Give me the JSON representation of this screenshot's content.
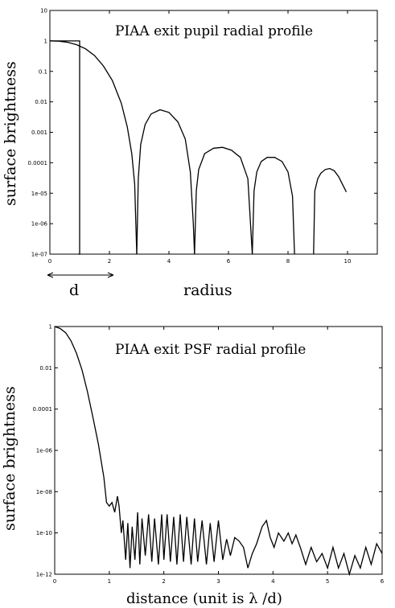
{
  "chart_data": [
    {
      "type": "line",
      "title": "PIAA exit pupil radial profile",
      "xlabel": "radius",
      "ylabel": "surface brightness",
      "annotation": "d",
      "xlim": [
        0,
        11
      ],
      "ylim_log10": [
        -7,
        1
      ],
      "log_y": true,
      "x_ticks": [
        "0",
        "2",
        "4",
        "6",
        "8",
        "10"
      ],
      "y_ticks": [
        "10",
        "1",
        "0.1",
        "0.01",
        "0.001",
        "0.0001",
        "1e-05",
        "1e-06",
        "1e-07"
      ],
      "series": [
        {
          "x": [
            0,
            0.3,
            0.6,
            0.9,
            1.2,
            1.5,
            1.8,
            2.1,
            2.4,
            2.6,
            2.75,
            2.85,
            2.92
          ],
          "y": [
            1,
            0.98,
            0.9,
            0.75,
            0.55,
            0.33,
            0.15,
            0.05,
            0.009,
            0.0015,
            0.0002,
            2e-05,
            1e-07
          ]
        },
        {
          "x": [
            2.92,
            2.97,
            3.05,
            3.2,
            3.4,
            3.7,
            4.0,
            4.3,
            4.55,
            4.72,
            4.82,
            4.86
          ],
          "y": [
            1e-07,
            3e-05,
            0.0004,
            0.0018,
            0.004,
            0.0055,
            0.0045,
            0.0022,
            0.0006,
            5e-05,
            1e-06,
            1e-07
          ]
        },
        {
          "x": [
            4.86,
            4.92,
            5.0,
            5.2,
            5.5,
            5.8,
            6.1,
            6.4,
            6.65,
            6.8
          ],
          "y": [
            1e-07,
            1.2e-05,
            6e-05,
            0.0002,
            0.0003,
            0.00032,
            0.00026,
            0.00015,
            3e-05,
            1e-07
          ]
        },
        {
          "x": [
            6.8,
            6.86,
            6.95,
            7.1,
            7.3,
            7.55,
            7.8,
            8.0,
            8.15,
            8.22
          ],
          "y": [
            1e-07,
            1.2e-05,
            5e-05,
            0.00011,
            0.00015,
            0.00015,
            0.00011,
            5e-05,
            8e-06,
            1e-07
          ]
        },
        {
          "x": [
            8.86,
            8.9,
            9.0,
            9.1,
            9.25,
            9.4,
            9.55,
            9.7,
            9.85,
            9.96
          ],
          "y": [
            1e-07,
            1.2e-05,
            3e-05,
            4.5e-05,
            6e-05,
            6.5e-05,
            5.5e-05,
            3.5e-05,
            1.8e-05,
            1.1e-05
          ]
        },
        {
          "x": [
            0,
            1,
            1,
            0.95
          ],
          "y": [
            1,
            1,
            1e-07,
            1e-07
          ]
        }
      ]
    },
    {
      "type": "line",
      "title": "PIAA exit PSF radial profile",
      "xlabel": "distance (unit is λ /d)",
      "ylabel": "surface brightness",
      "xlim": [
        0,
        6
      ],
      "ylim_log10": [
        -12,
        0
      ],
      "log_y": true,
      "x_ticks": [
        "0",
        "1",
        "2",
        "3",
        "4",
        "5",
        "6"
      ],
      "y_ticks": [
        "1",
        "0.01",
        "0.0001",
        "1e-06",
        "1e-08",
        "1e-10",
        "1e-12"
      ],
      "series": [
        {
          "x": [
            0,
            0.1,
            0.2,
            0.3,
            0.4,
            0.5,
            0.6,
            0.7,
            0.8,
            0.9,
            0.95,
            1.0,
            1.05,
            1.1,
            1.15,
            1.18,
            1.22,
            1.25,
            1.3,
            1.34,
            1.38,
            1.42,
            1.47,
            1.52,
            1.56,
            1.6,
            1.66,
            1.72,
            1.78,
            1.83,
            1.9,
            1.96,
            2.0,
            2.06,
            2.12,
            2.18,
            2.24,
            2.3,
            2.36,
            2.42,
            2.5,
            2.56,
            2.62,
            2.7,
            2.78,
            2.85,
            2.92,
            3.0,
            3.08,
            3.15,
            3.22,
            3.3,
            3.38,
            3.46,
            3.54,
            3.62,
            3.7,
            3.8,
            3.88,
            3.95,
            4.02,
            4.1,
            4.2,
            4.28,
            4.35,
            4.42,
            4.5,
            4.6,
            4.7,
            4.8,
            4.9,
            5.0,
            5.1,
            5.2,
            5.3,
            5.4,
            5.5,
            5.6,
            5.7,
            5.8,
            5.9,
            6.0
          ],
          "y": [
            1,
            0.8,
            0.5,
            0.2,
            0.05,
            0.008,
            0.0007,
            4e-05,
            2e-06,
            5e-08,
            3e-09,
            2e-09,
            3e-09,
            1e-09,
            6e-09,
            2e-09,
            1e-10,
            4e-10,
            5e-12,
            3e-10,
            2e-12,
            2e-10,
            5e-12,
            1e-09,
            3e-12,
            5e-10,
            8e-12,
            8e-10,
            4e-12,
            5e-10,
            3e-12,
            8e-10,
            5e-12,
            8e-10,
            4e-12,
            6e-10,
            3e-12,
            8e-10,
            4e-12,
            6e-10,
            3e-12,
            5e-10,
            4e-12,
            4e-10,
            3e-12,
            3e-10,
            4e-12,
            4e-10,
            5e-12,
            5e-11,
            8e-12,
            6e-11,
            4e-11,
            2e-11,
            2e-12,
            1e-11,
            3e-11,
            2e-10,
            4e-10,
            6e-11,
            2e-11,
            1e-10,
            4e-11,
            1e-10,
            3e-11,
            8e-11,
            2e-11,
            3e-12,
            2e-11,
            4e-12,
            1e-11,
            2e-12,
            2e-11,
            2e-12,
            1e-11,
            1e-12,
            8e-12,
            2e-12,
            2e-11,
            3e-12,
            3e-11,
            1e-11
          ]
        }
      ]
    }
  ]
}
